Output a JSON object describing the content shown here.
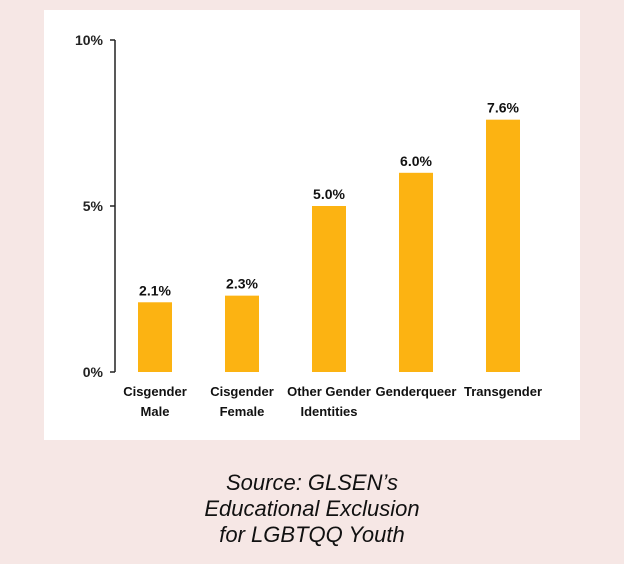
{
  "chart_data": {
    "type": "bar",
    "categories": [
      [
        "Cisgender",
        "Male"
      ],
      [
        "Cisgender",
        "Female"
      ],
      [
        "Other Gender",
        "Identities"
      ],
      [
        "Genderqueer"
      ],
      [
        "Transgender"
      ]
    ],
    "values": [
      2.1,
      2.3,
      5.0,
      6.0,
      7.6
    ],
    "data_labels": [
      "2.1%",
      "2.3%",
      "5.0%",
      "6.0%",
      "7.6%"
    ],
    "yticks": [
      0,
      5,
      10
    ],
    "ytick_labels": [
      "0%",
      "5%",
      "10%"
    ],
    "ylim": [
      0,
      10
    ],
    "bar_color": "#fcb312",
    "grid": false,
    "legend": "none"
  },
  "caption": {
    "lines": [
      "Source: GLSEN’s",
      "Educational Exclusion",
      "for LGBTQQ Youth"
    ]
  }
}
